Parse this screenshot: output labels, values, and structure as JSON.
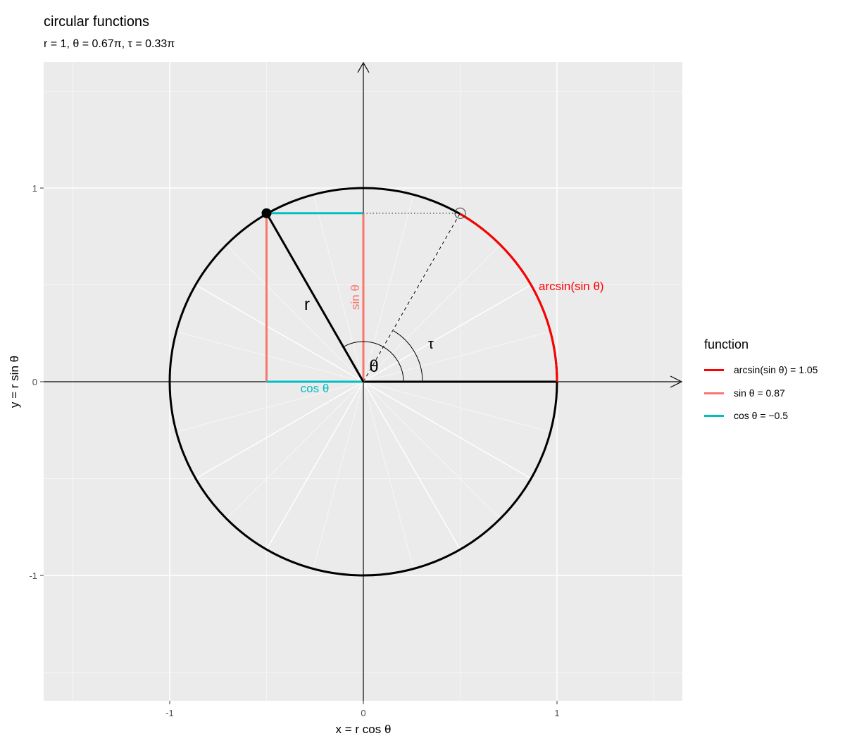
{
  "chart_data": {
    "type": "line",
    "title": "circular functions",
    "subtitle": "r = 1, θ = 0.67π, τ = 0.33π",
    "xlabel": "x = r cos θ",
    "ylabel": "y = r sin θ",
    "xlim": [
      -1.65,
      1.65
    ],
    "ylim": [
      -1.65,
      1.65
    ],
    "x_ticks": [
      {
        "value": -1,
        "label": "-1"
      },
      {
        "value": 0,
        "label": "0"
      },
      {
        "value": 1,
        "label": "1"
      }
    ],
    "y_ticks": [
      {
        "value": 1,
        "label": "1"
      },
      {
        "value": 0,
        "label": "0"
      },
      {
        "value": -1,
        "label": "-1"
      }
    ],
    "grid": true,
    "background": "#EBEBEB",
    "r": 1,
    "theta_pi": 0.67,
    "tau_pi": 0.33,
    "point": {
      "x": -0.5,
      "y": 0.87
    },
    "reflected_point": {
      "x": 0.5,
      "y": 0.87
    },
    "arc": {
      "name": "arcsin(sin θ) = 1.05",
      "from": 0,
      "to": 1.05,
      "color": "#FF0000"
    },
    "annotations": {
      "r": "r",
      "theta": "θ",
      "tau": "τ",
      "sin": "sin θ",
      "cos": "cos θ",
      "arcsin": "arcsin(sin θ)"
    },
    "legend": {
      "title": "function",
      "position": "right",
      "items": [
        {
          "label": "arcsin(sin θ) = 1.05",
          "color": "#FF0000",
          "value": 1.05
        },
        {
          "label": "sin θ = 0.87",
          "color": "#F8766D",
          "value": 0.87
        },
        {
          "label": "cos θ = −0.5",
          "color": "#00BFC4",
          "value": -0.5
        }
      ]
    }
  }
}
